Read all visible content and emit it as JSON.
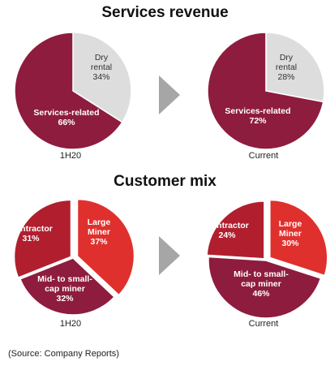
{
  "colors": {
    "maroon": "#8E1C3E",
    "gray": "#DDDDDD",
    "red": "#E0302D",
    "dark_red": "#B11F2E",
    "arrow": "#A6A6A6"
  },
  "chart_data": [
    {
      "type": "pie",
      "title": "Services revenue",
      "period": "1H20",
      "slices": [
        {
          "label": "Dry rental",
          "value": 34,
          "text": "34%",
          "color": "#DDDDDD"
        },
        {
          "label": "Services-related",
          "value": 66,
          "text": "66%",
          "color": "#8E1C3E"
        }
      ]
    },
    {
      "type": "pie",
      "title": "Services revenue",
      "period": "Current",
      "slices": [
        {
          "label": "Dry rental",
          "value": 28,
          "text": "28%",
          "color": "#DDDDDD"
        },
        {
          "label": "Services-related",
          "value": 72,
          "text": "72%",
          "color": "#8E1C3E"
        }
      ]
    },
    {
      "type": "pie",
      "title": "Customer mix",
      "period": "1H20",
      "slices": [
        {
          "label": "Large Miner",
          "value": 37,
          "text": "37%",
          "color": "#E0302D"
        },
        {
          "label": "Mid- to small-cap miner",
          "value": 32,
          "text": "32%",
          "color": "#8E1C3E"
        },
        {
          "label": "Contractor",
          "value": 31,
          "text": "31%",
          "color": "#B11F2E"
        }
      ]
    },
    {
      "type": "pie",
      "title": "Customer mix",
      "period": "Current",
      "slices": [
        {
          "label": "Large Miner",
          "value": 30,
          "text": "30%",
          "color": "#E0302D"
        },
        {
          "label": "Mid- to small-cap miner",
          "value": 46,
          "text": "46%",
          "color": "#8E1C3E"
        },
        {
          "label": "Contractor",
          "value": 24,
          "text": "24%",
          "color": "#B11F2E"
        }
      ]
    }
  ],
  "source": "(Source: Company Reports)"
}
